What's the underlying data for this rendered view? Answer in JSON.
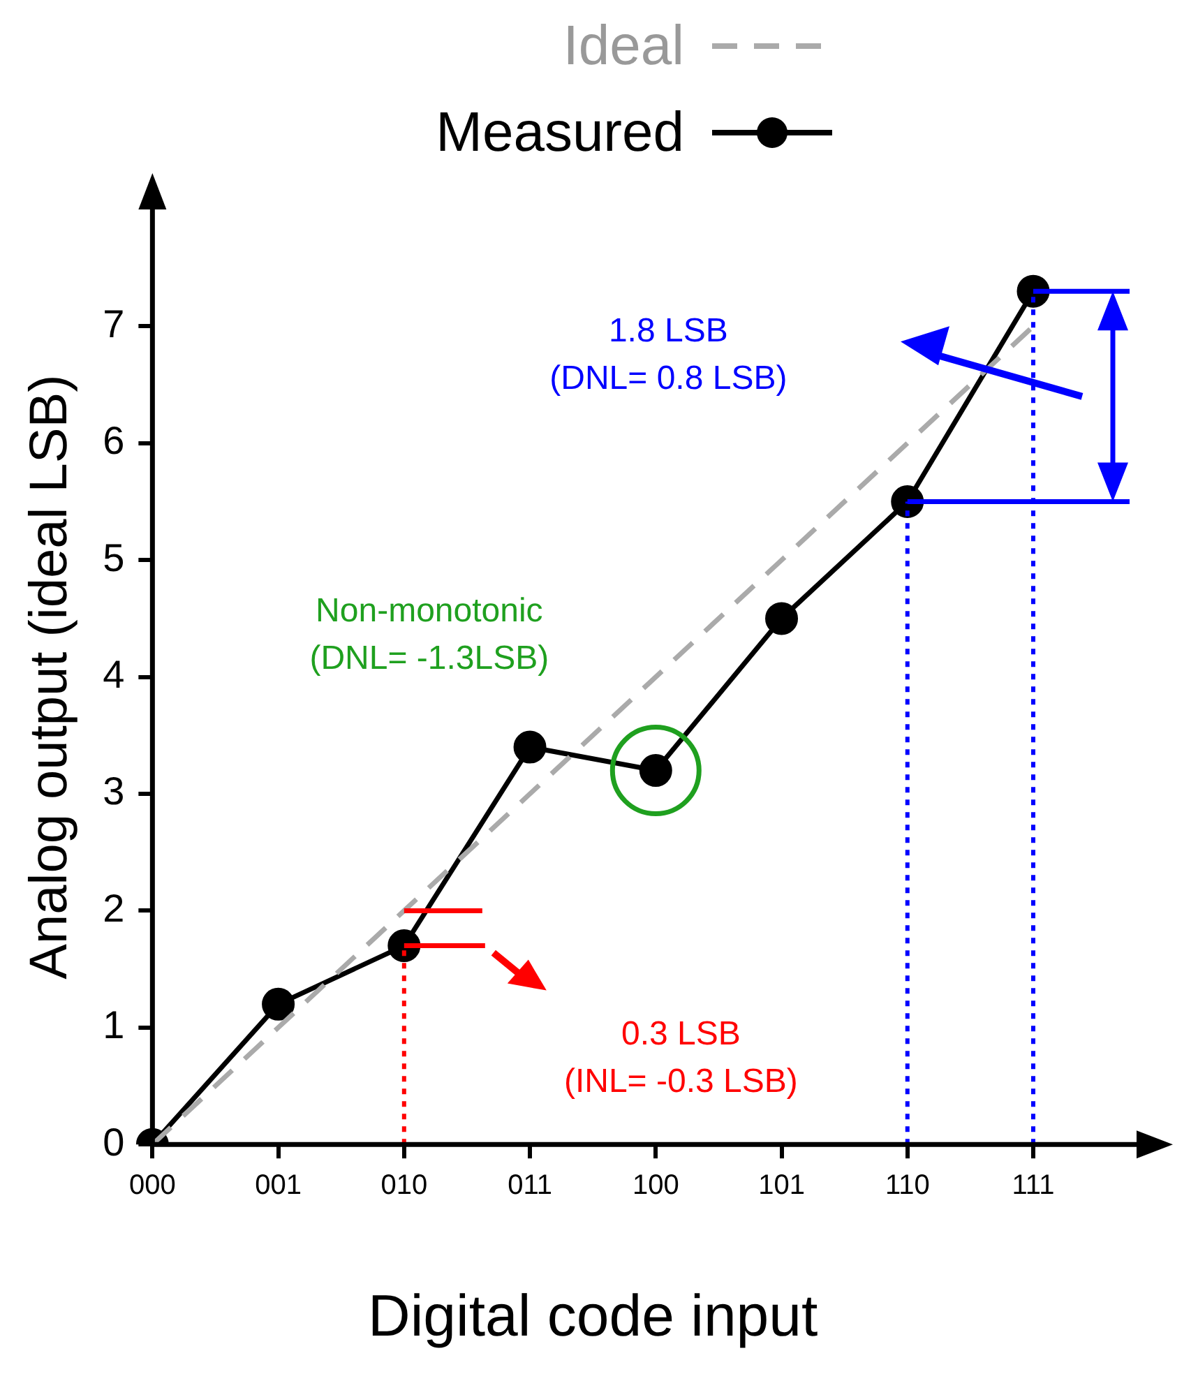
{
  "chart_data": {
    "type": "line",
    "xlabel": "Digital code input",
    "ylabel": "Analog output (ideal LSB)",
    "categories": [
      "000",
      "001",
      "010",
      "011",
      "100",
      "101",
      "110",
      "111"
    ],
    "ylim": [
      0,
      8
    ],
    "yticks": [
      0,
      1,
      2,
      3,
      4,
      5,
      6,
      7
    ],
    "grid": false,
    "legend": "top",
    "series": [
      {
        "name": "Ideal",
        "color": "#aaaaaa",
        "line_style": "dashed",
        "marker": "none",
        "values": [
          0,
          1,
          2,
          3,
          4,
          5,
          6,
          7
        ]
      },
      {
        "name": "Measured",
        "color": "#000000",
        "line_style": "solid",
        "marker": "circle",
        "values": [
          0,
          1.2,
          1.7,
          3.4,
          3.2,
          4.5,
          5.5,
          7.3
        ]
      }
    ],
    "ref_lines": [
      {
        "axis": "x",
        "value": "010",
        "color": "#ff0000",
        "line_style": "dotted"
      },
      {
        "axis": "x",
        "value": "110",
        "color": "#0000ff",
        "line_style": "dotted"
      },
      {
        "axis": "x",
        "value": "111",
        "color": "#0000ff",
        "line_style": "dotted"
      }
    ],
    "annotations": [
      "Non-monotonic\n(DNL= -1.3LSB)",
      "1.8 LSB\n(DNL= 0.8 LSB)",
      "0.3 LSB\n(INL= -0.3 LSB)"
    ]
  }
}
